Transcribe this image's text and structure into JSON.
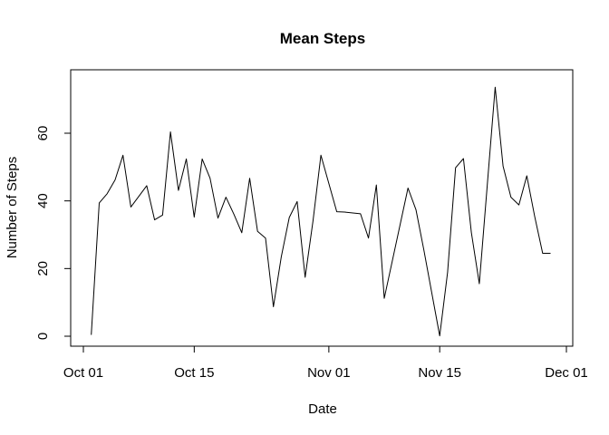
{
  "chart_data": {
    "type": "line",
    "title": "Mean Steps",
    "xlabel": "Date",
    "ylabel": "Number of Steps",
    "xlim": [
      "2012-10-01",
      "2012-12-01"
    ],
    "ylim": [
      0,
      75
    ],
    "x_ticks": [
      {
        "date": "2012-10-01",
        "label": "Oct 01"
      },
      {
        "date": "2012-10-15",
        "label": "Oct 15"
      },
      {
        "date": "2012-11-01",
        "label": "Nov 01"
      },
      {
        "date": "2012-11-15",
        "label": "Nov 15"
      },
      {
        "date": "2012-12-01",
        "label": "Dec 01"
      }
    ],
    "y_ticks": [
      0,
      20,
      40,
      60
    ],
    "grid": false,
    "line_color": "#000000",
    "series": [
      {
        "x": [
          "2012-10-02",
          "2012-10-03",
          "2012-10-04",
          "2012-10-05",
          "2012-10-06",
          "2012-10-07",
          "2012-10-09",
          "2012-10-10",
          "2012-10-11",
          "2012-10-12",
          "2012-10-13",
          "2012-10-14",
          "2012-10-15",
          "2012-10-16",
          "2012-10-17",
          "2012-10-18",
          "2012-10-19",
          "2012-10-20",
          "2012-10-21",
          "2012-10-22",
          "2012-10-23",
          "2012-10-24",
          "2012-10-25",
          "2012-10-26",
          "2012-10-27",
          "2012-10-28",
          "2012-10-29",
          "2012-10-30",
          "2012-10-31",
          "2012-11-02",
          "2012-11-03",
          "2012-11-05",
          "2012-11-06",
          "2012-11-07",
          "2012-11-08",
          "2012-11-11",
          "2012-11-12",
          "2012-11-13",
          "2012-11-15",
          "2012-11-16",
          "2012-11-17",
          "2012-11-18",
          "2012-11-19",
          "2012-11-20",
          "2012-11-21",
          "2012-11-22",
          "2012-11-23",
          "2012-11-24",
          "2012-11-25",
          "2012-11-26",
          "2012-11-27",
          "2012-11-28",
          "2012-11-29"
        ],
        "y": [
          0.4,
          39.4,
          42.1,
          46.2,
          53.5,
          38.2,
          44.5,
          34.4,
          35.8,
          60.4,
          43.1,
          52.4,
          35.2,
          52.4,
          46.7,
          34.9,
          41.1,
          36.1,
          30.6,
          46.7,
          31.0,
          29.0,
          8.7,
          23.5,
          35.1,
          39.8,
          17.4,
          34.1,
          53.5,
          36.8,
          36.7,
          36.2,
          29.0,
          44.7,
          11.2,
          43.8,
          37.4,
          25.5,
          0.1,
          18.9,
          49.8,
          52.5,
          30.7,
          15.5,
          44.4,
          73.6,
          50.3,
          41.1,
          38.8,
          47.4,
          35.4,
          24.5,
          24.5
        ]
      }
    ]
  }
}
